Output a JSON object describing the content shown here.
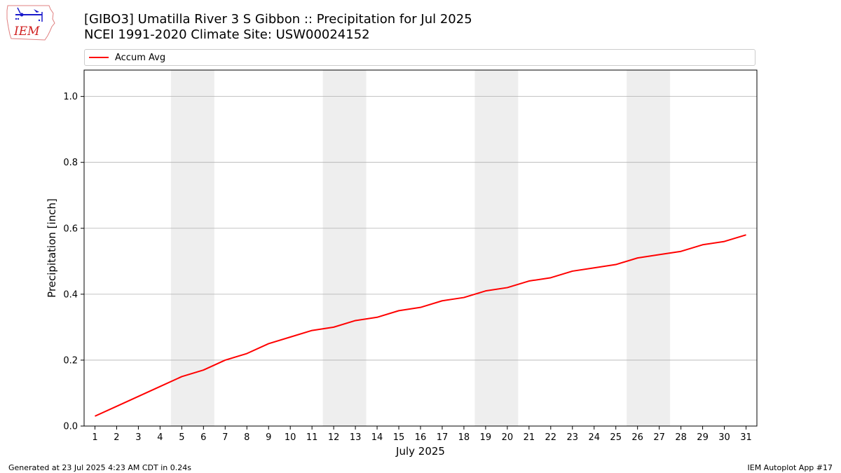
{
  "header": {
    "title_line1": "[GIBO3] Umatilla River 3 S Gibbon :: Precipitation for Jul 2025",
    "title_line2": "NCEI 1991-2020 Climate Site: USW00024152",
    "logo_text": "IEM"
  },
  "footer": {
    "left": "Generated at 23 Jul 2025 4:23 AM CDT in 0.24s",
    "right": "IEM Autoplot App #17"
  },
  "colors": {
    "series": "#ff0000",
    "weekend_shade": "#eeeeee",
    "grid": "#b0b0b0"
  },
  "chart_data": {
    "type": "line",
    "title": "[GIBO3] Umatilla River 3 S Gibbon :: Precipitation for Jul 2025",
    "subtitle": "NCEI 1991-2020 Climate Site: USW00024152",
    "xlabel": "July 2025",
    "ylabel": "Precipitation [inch]",
    "xlim": [
      0.5,
      31.5
    ],
    "ylim": [
      0,
      1.08
    ],
    "yticks": [
      "0.0",
      "0.2",
      "0.4",
      "0.6",
      "0.8",
      "1.0"
    ],
    "xticks": [
      "1",
      "2",
      "3",
      "4",
      "5",
      "6",
      "7",
      "8",
      "9",
      "10",
      "11",
      "12",
      "13",
      "14",
      "15",
      "16",
      "17",
      "18",
      "19",
      "20",
      "21",
      "22",
      "23",
      "24",
      "25",
      "26",
      "27",
      "28",
      "29",
      "30",
      "31"
    ],
    "grid": "y-major",
    "legend_position": "top",
    "shaded_day_ranges": [
      [
        4.5,
        6.5
      ],
      [
        11.5,
        13.5
      ],
      [
        18.5,
        20.5
      ],
      [
        25.5,
        27.5
      ]
    ],
    "series": [
      {
        "name": "Accum Avg",
        "x": [
          1,
          2,
          3,
          4,
          5,
          6,
          7,
          8,
          9,
          10,
          11,
          12,
          13,
          14,
          15,
          16,
          17,
          18,
          19,
          20,
          21,
          22,
          23,
          24,
          25,
          26,
          27,
          28,
          29,
          30,
          31
        ],
        "values": [
          0.03,
          0.06,
          0.09,
          0.12,
          0.15,
          0.17,
          0.2,
          0.22,
          0.25,
          0.27,
          0.29,
          0.3,
          0.32,
          0.33,
          0.35,
          0.36,
          0.38,
          0.39,
          0.41,
          0.42,
          0.44,
          0.45,
          0.47,
          0.48,
          0.49,
          0.51,
          0.52,
          0.53,
          0.55,
          0.56,
          0.58
        ]
      }
    ]
  }
}
